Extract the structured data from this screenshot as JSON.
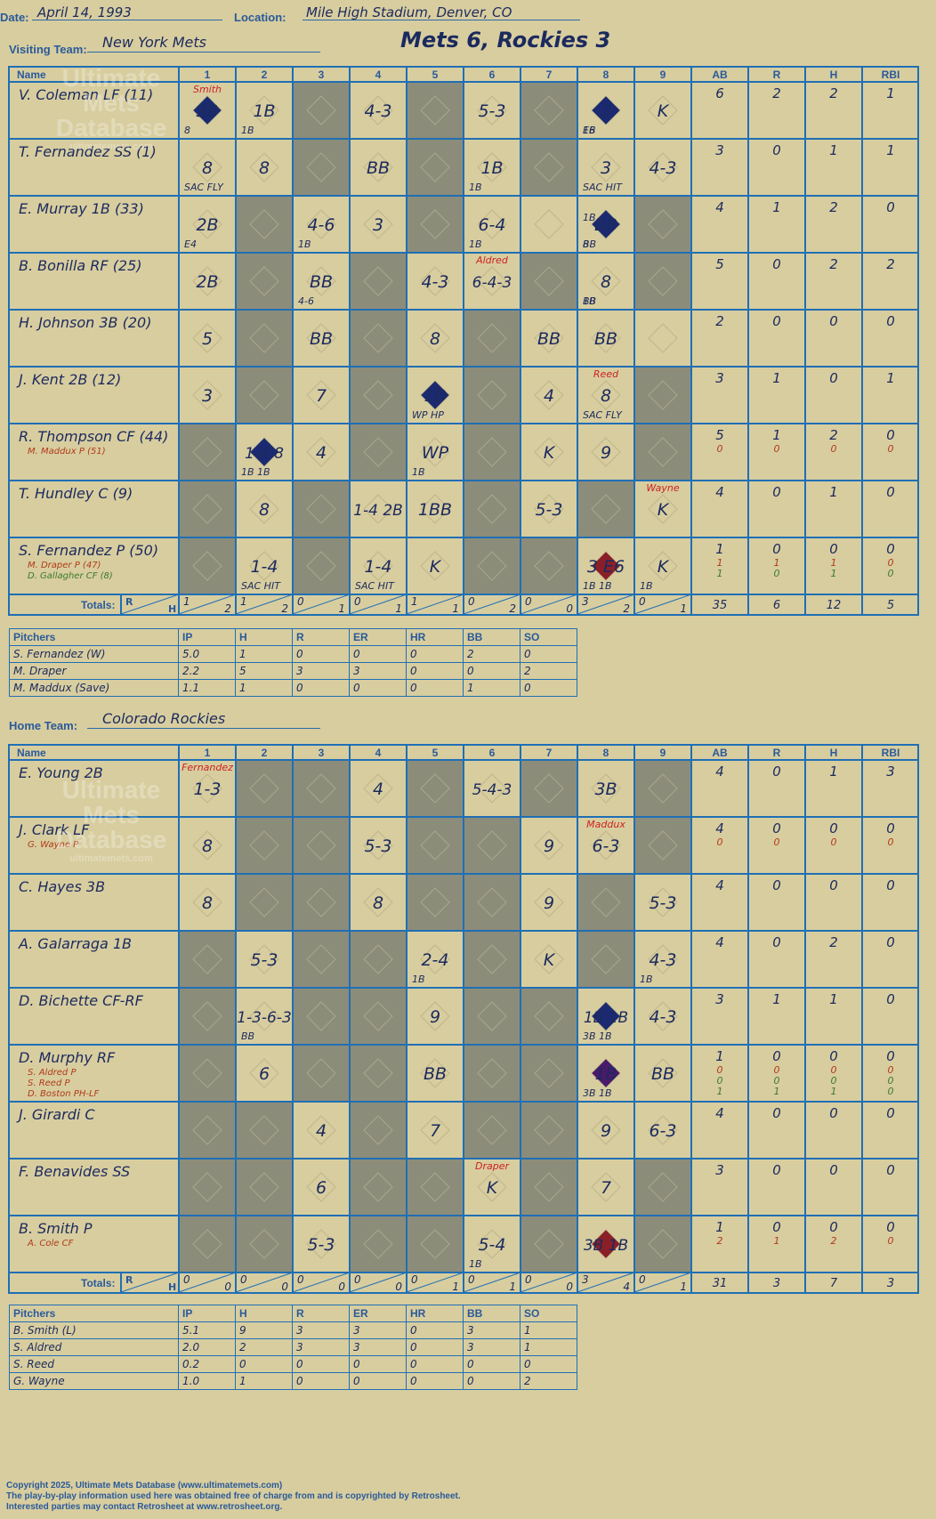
{
  "header": {
    "date_label": "Date:",
    "date": "April 14, 1993",
    "location_label": "Location:",
    "location": "Mile High Stadium, Denver, CO",
    "visiting_label": "Visiting Team:",
    "visiting": "New York Mets",
    "title": "Mets 6, Rockies 3",
    "home_label": "Home Team:",
    "home": "Colorado Rockies"
  },
  "watermark": {
    "line1": "Ultimate",
    "line2": "Mets",
    "line3": "Database",
    "line4": "ultimatemets.com"
  },
  "grid_headers": {
    "name": "Name",
    "innings": [
      "1",
      "2",
      "3",
      "4",
      "5",
      "6",
      "7",
      "8",
      "9"
    ],
    "stats": [
      "AB",
      "R",
      "H",
      "RBI"
    ],
    "totals": "Totals:",
    "r": "R",
    "h": "H"
  },
  "pitch_headers": [
    "Pitchers",
    "IP",
    "H",
    "R",
    "ER",
    "HR",
    "BB",
    "SO"
  ],
  "visitors": {
    "players": [
      {
        "name": "V. Coleman LF (11)",
        "subs": [],
        "stats": [
          [
            "6",
            "2",
            "2",
            "1"
          ]
        ]
      },
      {
        "name": "T. Fernandez SS (1)",
        "subs": [],
        "stats": [
          [
            "3",
            "0",
            "1",
            "1"
          ]
        ]
      },
      {
        "name": "E. Murray 1B (33)",
        "subs": [],
        "stats": [
          [
            "4",
            "1",
            "2",
            "0"
          ]
        ]
      },
      {
        "name": "B. Bonilla RF (25)",
        "subs": [],
        "stats": [
          [
            "5",
            "0",
            "2",
            "2"
          ]
        ]
      },
      {
        "name": "H. Johnson 3B (20)",
        "subs": [],
        "stats": [
          [
            "2",
            "0",
            "0",
            "0"
          ]
        ]
      },
      {
        "name": "J. Kent 2B (12)",
        "subs": [],
        "stats": [
          [
            "3",
            "1",
            "0",
            "1"
          ]
        ]
      },
      {
        "name": "R. Thompson CF (44)",
        "subs": [
          "M. Maddux P (51)"
        ],
        "stats": [
          [
            "5",
            "1",
            "2",
            "0"
          ],
          [
            "0",
            "0",
            "0",
            "0"
          ]
        ]
      },
      {
        "name": "T. Hundley C (9)",
        "subs": [],
        "stats": [
          [
            "4",
            "0",
            "1",
            "0"
          ]
        ]
      },
      {
        "name": "S. Fernandez P (50)",
        "subs": [
          "M. Draper P (47)",
          "D. Gallagher CF (8)"
        ],
        "stats": [
          [
            "1",
            "0",
            "0",
            "0"
          ],
          [
            "1",
            "1",
            "1",
            "0"
          ],
          [
            "1",
            "0",
            "1",
            "0"
          ]
        ]
      }
    ],
    "cells": [
      [
        "3B|8|Smith",
        "1B|1B",
        "",
        "4-3",
        "",
        "5-3",
        "",
        "3|1B|E6",
        "K"
      ],
      [
        "8|SAC FLY",
        "8",
        "",
        "BB",
        "",
        "1B|1B",
        "",
        "3|SAC HIT",
        "4-3"
      ],
      [
        "2B|E4",
        "",
        "4-6|1B",
        "3",
        "",
        "6-4|1B",
        "",
        "BB|1B|8|BB",
        ""
      ],
      [
        "2B",
        "",
        "BB|4-6",
        "",
        "4-3",
        "6-4-3|Aldred",
        "",
        "8|BB|1B",
        ""
      ],
      [
        "5",
        "",
        "BB",
        "",
        "8",
        "",
        "BB",
        "BB",
        ""
      ],
      [
        "3",
        "",
        "7",
        "",
        "1B|WP HP",
        "",
        "4",
        "8|SAC FLY|Reed",
        ""
      ],
      [
        "",
        "1-4 8|1B 1B",
        "4",
        "",
        "WP|1B",
        "",
        "K",
        "9",
        ""
      ],
      [
        "",
        "8",
        "",
        "1-4 2B",
        "1BB",
        "",
        "5-3",
        "",
        "K|Wayne"
      ],
      [
        "",
        "1-4|SAC HIT",
        "",
        "1-4|SAC HIT",
        "K",
        "",
        "",
        "3 E6|1B 1B",
        "K|1B"
      ]
    ],
    "shaded": [
      [
        0,
        2
      ],
      [
        0,
        4
      ],
      [
        0,
        6
      ],
      [
        1,
        2
      ],
      [
        1,
        4
      ],
      [
        1,
        6
      ],
      [
        2,
        1
      ],
      [
        2,
        4
      ],
      [
        2,
        8
      ],
      [
        3,
        1
      ],
      [
        3,
        3
      ],
      [
        3,
        6
      ],
      [
        3,
        8
      ],
      [
        4,
        1
      ],
      [
        4,
        3
      ],
      [
        4,
        5
      ],
      [
        5,
        1
      ],
      [
        5,
        3
      ],
      [
        5,
        5
      ],
      [
        5,
        8
      ],
      [
        6,
        0
      ],
      [
        6,
        3
      ],
      [
        6,
        5
      ],
      [
        6,
        8
      ],
      [
        7,
        0
      ],
      [
        7,
        2
      ],
      [
        7,
        5
      ],
      [
        7,
        7
      ],
      [
        8,
        0
      ],
      [
        8,
        2
      ],
      [
        8,
        5
      ],
      [
        8,
        6
      ]
    ],
    "runs": [
      {
        "base": [
          0,
          0
        ],
        "color": "#1b2a70"
      },
      {
        "base": [
          0,
          7
        ],
        "color": "#1b2a70"
      },
      {
        "base": [
          2,
          7
        ],
        "color": "#1b2a70"
      },
      {
        "base": [
          5,
          4
        ],
        "color": "#1b2a70"
      },
      {
        "base": [
          6,
          1
        ],
        "color": "#1b2a70"
      },
      {
        "base": [
          8,
          7
        ],
        "color": "#8a1f28"
      }
    ],
    "totals_rh": [
      [
        "1",
        "2"
      ],
      [
        "1",
        "2"
      ],
      [
        "0",
        "1"
      ],
      [
        "0",
        "1"
      ],
      [
        "1",
        "1"
      ],
      [
        "0",
        "2"
      ],
      [
        "0",
        "0"
      ],
      [
        "3",
        "2"
      ],
      [
        "0",
        "1"
      ]
    ],
    "totals_stats": [
      "35",
      "6",
      "12",
      "5"
    ],
    "pitchers": [
      [
        "S. Fernandez (W)",
        "5.0",
        "1",
        "0",
        "0",
        "0",
        "2",
        "0"
      ],
      [
        "M. Draper",
        "2.2",
        "5",
        "3",
        "3",
        "0",
        "0",
        "2"
      ],
      [
        "M. Maddux (Save)",
        "1.1",
        "1",
        "0",
        "0",
        "0",
        "1",
        "0"
      ]
    ]
  },
  "home": {
    "players": [
      {
        "name": "E. Young 2B",
        "subs": [],
        "stats": [
          [
            "4",
            "0",
            "1",
            "3"
          ]
        ]
      },
      {
        "name": "J. Clark LF",
        "subs": [
          "G. Wayne P"
        ],
        "stats": [
          [
            "4",
            "0",
            "0",
            "0"
          ],
          [
            "0",
            "0",
            "0",
            "0"
          ]
        ]
      },
      {
        "name": "C. Hayes 3B",
        "subs": [],
        "stats": [
          [
            "4",
            "0",
            "0",
            "0"
          ]
        ]
      },
      {
        "name": "A. Galarraga 1B",
        "subs": [],
        "stats": [
          [
            "4",
            "0",
            "2",
            "0"
          ]
        ]
      },
      {
        "name": "D. Bichette CF-RF",
        "subs": [],
        "stats": [
          [
            "3",
            "1",
            "1",
            "0"
          ]
        ]
      },
      {
        "name": "D. Murphy RF",
        "subs": [
          "S. Aldred P",
          "S. Reed P",
          "D. Boston PH-LF"
        ],
        "stats": [
          [
            "1",
            "0",
            "0",
            "0"
          ],
          [
            "0",
            "0",
            "0",
            "0"
          ],
          [
            "0",
            "0",
            "0",
            "0"
          ],
          [
            "1",
            "1",
            "1",
            "0"
          ]
        ]
      },
      {
        "name": "J. Girardi C",
        "subs": [],
        "stats": [
          [
            "4",
            "0",
            "0",
            "0"
          ]
        ]
      },
      {
        "name": "F. Benavides SS",
        "subs": [],
        "stats": [
          [
            "3",
            "0",
            "0",
            "0"
          ]
        ]
      },
      {
        "name": "B. Smith P",
        "subs": [
          "A. Cole CF"
        ],
        "stats": [
          [
            "1",
            "0",
            "0",
            "0"
          ],
          [
            "2",
            "1",
            "2",
            "0"
          ]
        ]
      }
    ],
    "cells": [
      [
        "1-3|Fernandez",
        "",
        "",
        "4",
        "",
        "5-4-3",
        "",
        "3B",
        ""
      ],
      [
        "8",
        "",
        "",
        "5-3",
        "",
        "",
        "9",
        "6-3|Maddux",
        ""
      ],
      [
        "8",
        "",
        "",
        "8",
        "",
        "",
        "9",
        "",
        "5-3"
      ],
      [
        "",
        "5-3",
        "",
        "",
        "2-4|1B",
        "",
        "K",
        "",
        "4-3|1B"
      ],
      [
        "",
        "1-3-6-3|BB",
        "",
        "",
        "9",
        "",
        "",
        "1B 1B|3B 1B",
        "4-3"
      ],
      [
        "",
        "6",
        "",
        "",
        "BB",
        "",
        "",
        "1B|3B 1B",
        "BB"
      ],
      [
        "",
        "",
        "4",
        "",
        "7",
        "",
        "",
        "9",
        "6-3"
      ],
      [
        "",
        "",
        "6",
        "",
        "",
        "K|Draper",
        "",
        "7",
        ""
      ],
      [
        "",
        "",
        "5-3",
        "",
        "",
        "5-4|1B",
        "",
        "3B 1B",
        ""
      ]
    ],
    "shaded": [
      [
        0,
        1
      ],
      [
        0,
        2
      ],
      [
        0,
        4
      ],
      [
        0,
        6
      ],
      [
        0,
        8
      ],
      [
        1,
        1
      ],
      [
        1,
        2
      ],
      [
        1,
        4
      ],
      [
        1,
        5
      ],
      [
        1,
        8
      ],
      [
        2,
        1
      ],
      [
        2,
        2
      ],
      [
        2,
        4
      ],
      [
        2,
        5
      ],
      [
        2,
        7
      ],
      [
        3,
        0
      ],
      [
        3,
        2
      ],
      [
        3,
        3
      ],
      [
        3,
        5
      ],
      [
        3,
        7
      ],
      [
        4,
        0
      ],
      [
        4,
        2
      ],
      [
        4,
        3
      ],
      [
        4,
        5
      ],
      [
        4,
        6
      ],
      [
        5,
        0
      ],
      [
        5,
        2
      ],
      [
        5,
        3
      ],
      [
        5,
        5
      ],
      [
        5,
        6
      ],
      [
        6,
        0
      ],
      [
        6,
        1
      ],
      [
        6,
        3
      ],
      [
        6,
        5
      ],
      [
        6,
        6
      ],
      [
        7,
        0
      ],
      [
        7,
        1
      ],
      [
        7,
        3
      ],
      [
        7,
        4
      ],
      [
        7,
        6
      ],
      [
        7,
        8
      ],
      [
        8,
        0
      ],
      [
        8,
        1
      ],
      [
        8,
        3
      ],
      [
        8,
        4
      ],
      [
        8,
        6
      ],
      [
        8,
        8
      ]
    ],
    "runs": [
      {
        "base": [
          4,
          7
        ],
        "color": "#1b2a70"
      },
      {
        "base": [
          5,
          7
        ],
        "color": "#4a1a6a"
      },
      {
        "base": [
          8,
          7
        ],
        "color": "#8a1f28"
      }
    ],
    "totals_rh": [
      [
        "0",
        "0"
      ],
      [
        "0",
        "0"
      ],
      [
        "0",
        "0"
      ],
      [
        "0",
        "0"
      ],
      [
        "0",
        "1"
      ],
      [
        "0",
        "1"
      ],
      [
        "0",
        "0"
      ],
      [
        "3",
        "4"
      ],
      [
        "0",
        "1"
      ]
    ],
    "totals_stats": [
      "31",
      "3",
      "7",
      "3"
    ],
    "pitchers": [
      [
        "B. Smith (L)",
        "5.1",
        "9",
        "3",
        "3",
        "0",
        "3",
        "1"
      ],
      [
        "S. Aldred",
        "2.0",
        "2",
        "3",
        "3",
        "0",
        "3",
        "1"
      ],
      [
        "S. Reed",
        "0.2",
        "0",
        "0",
        "0",
        "0",
        "0",
        "0"
      ],
      [
        "G. Wayne",
        "1.0",
        "1",
        "0",
        "0",
        "0",
        "0",
        "2"
      ]
    ]
  },
  "footer": {
    "line1": "Copyright 2025, Ultimate Mets Database (www.ultimatemets.com)",
    "line2": "The play-by-play information used here was obtained free of charge from and is copyrighted by Retrosheet.",
    "line3": "Interested parties may contact Retrosheet at www.retrosheet.org."
  },
  "colors": {
    "grid": "#1f6fb5",
    "shade": "#8c8c7a",
    "ink": "#1b2a5e",
    "red": "#cc2222",
    "sub_red": "#b03a1a",
    "sub_green": "#3a7a2a"
  }
}
